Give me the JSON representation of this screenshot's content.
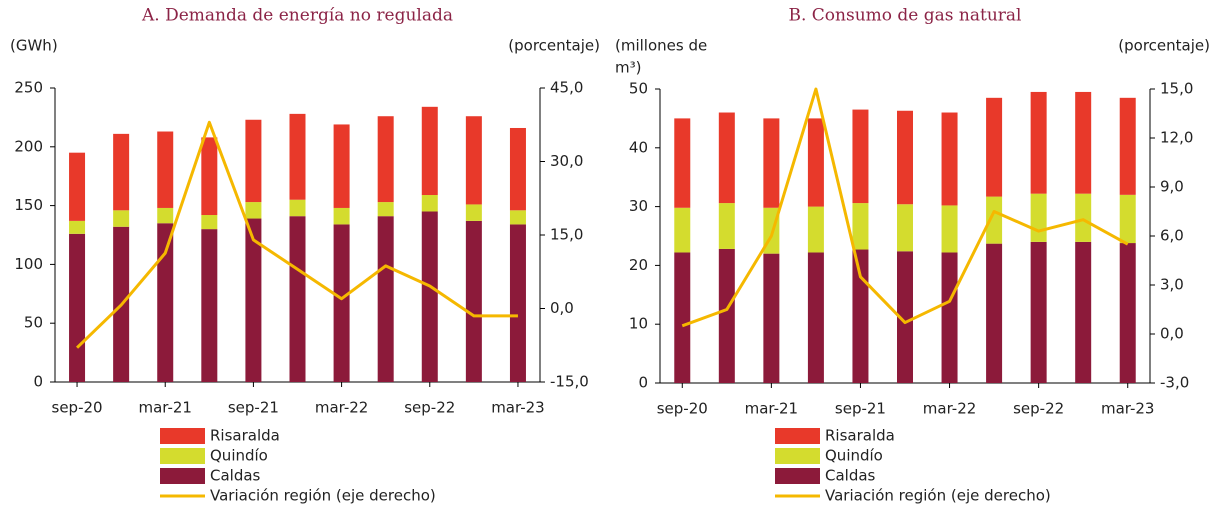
{
  "chart_data": [
    {
      "type": "bar",
      "stacked": true,
      "title": "A. Demanda de energía no regulada",
      "ylabel": [
        "(GWh)"
      ],
      "y2label": "(porcentaje)",
      "categories": [
        "sep-20",
        null,
        "mar-21",
        null,
        "sep-21",
        null,
        "mar-22",
        null,
        "sep-22",
        null,
        "mar-23"
      ],
      "ylim": [
        0,
        250
      ],
      "yticks": [
        0,
        50,
        100,
        150,
        200,
        250
      ],
      "y2lim": [
        -15,
        45
      ],
      "y2ticks": [
        {
          "value": -15,
          "label": "-15,0"
        },
        {
          "value": 0,
          "label": "0,0"
        },
        {
          "value": 15,
          "label": "15,0"
        },
        {
          "value": 30,
          "label": "30,0"
        },
        {
          "value": 45,
          "label": "45,0"
        }
      ],
      "series": [
        {
          "name": "Caldas",
          "color": "#8c1a3a",
          "values": [
            126,
            132,
            135,
            130,
            139,
            141,
            134,
            141,
            145,
            137,
            134
          ]
        },
        {
          "name": "Quindío",
          "color": "#d4dc2e",
          "values": [
            11,
            14,
            13,
            12,
            14,
            14,
            14,
            12,
            14,
            14,
            12
          ]
        },
        {
          "name": "Risaralda",
          "color": "#e8392a",
          "values": [
            58,
            65,
            65,
            66,
            70,
            73,
            71,
            73,
            75,
            75,
            70
          ]
        },
        {
          "name": "Variación región (eje derecho)",
          "color": "#f5b800",
          "type": "line",
          "axis": "y2",
          "values": [
            -8,
            0.7,
            11.3,
            38,
            14,
            8,
            2,
            8.7,
            4.6,
            -1.5,
            -1.5
          ]
        }
      ]
    },
    {
      "type": "bar",
      "stacked": true,
      "title": "B. Consumo de gas natural",
      "ylabel": [
        "(millones de",
        "m³)"
      ],
      "y2label": "(porcentaje)",
      "categories": [
        "sep-20",
        null,
        "mar-21",
        null,
        "sep-21",
        null,
        "mar-22",
        null,
        "sep-22",
        null,
        "mar-23"
      ],
      "ylim": [
        0,
        50
      ],
      "yticks": [
        0,
        10,
        20,
        30,
        40,
        50
      ],
      "y2lim": [
        -3,
        15
      ],
      "y2ticks": [
        {
          "value": -3,
          "label": "-3,0"
        },
        {
          "value": 0,
          "label": "0,0"
        },
        {
          "value": 3,
          "label": "3,0"
        },
        {
          "value": 6,
          "label": "6,0"
        },
        {
          "value": 9,
          "label": "9,0"
        },
        {
          "value": 12,
          "label": "12,0"
        },
        {
          "value": 15,
          "label": "15,0"
        }
      ],
      "series": [
        {
          "name": "Caldas",
          "color": "#8c1a3a",
          "values": [
            22.2,
            22.8,
            22,
            22.2,
            22.7,
            22.4,
            22.2,
            23.7,
            24,
            24,
            23.8
          ]
        },
        {
          "name": "Quindío",
          "color": "#d4dc2e",
          "values": [
            7.6,
            7.8,
            7.8,
            7.8,
            7.9,
            8,
            8,
            8,
            8.2,
            8.2,
            8.2
          ]
        },
        {
          "name": "Risaralda",
          "color": "#e8392a",
          "values": [
            15.2,
            15.4,
            15.2,
            15,
            15.9,
            15.9,
            15.8,
            16.8,
            17.3,
            17.3,
            16.5
          ]
        },
        {
          "name": "Variación región (eje derecho)",
          "color": "#f5b800",
          "type": "line",
          "axis": "y2",
          "values": [
            0.5,
            1.5,
            6,
            15,
            3.5,
            0.7,
            2,
            7.5,
            6.3,
            7,
            5.5
          ]
        }
      ]
    }
  ]
}
